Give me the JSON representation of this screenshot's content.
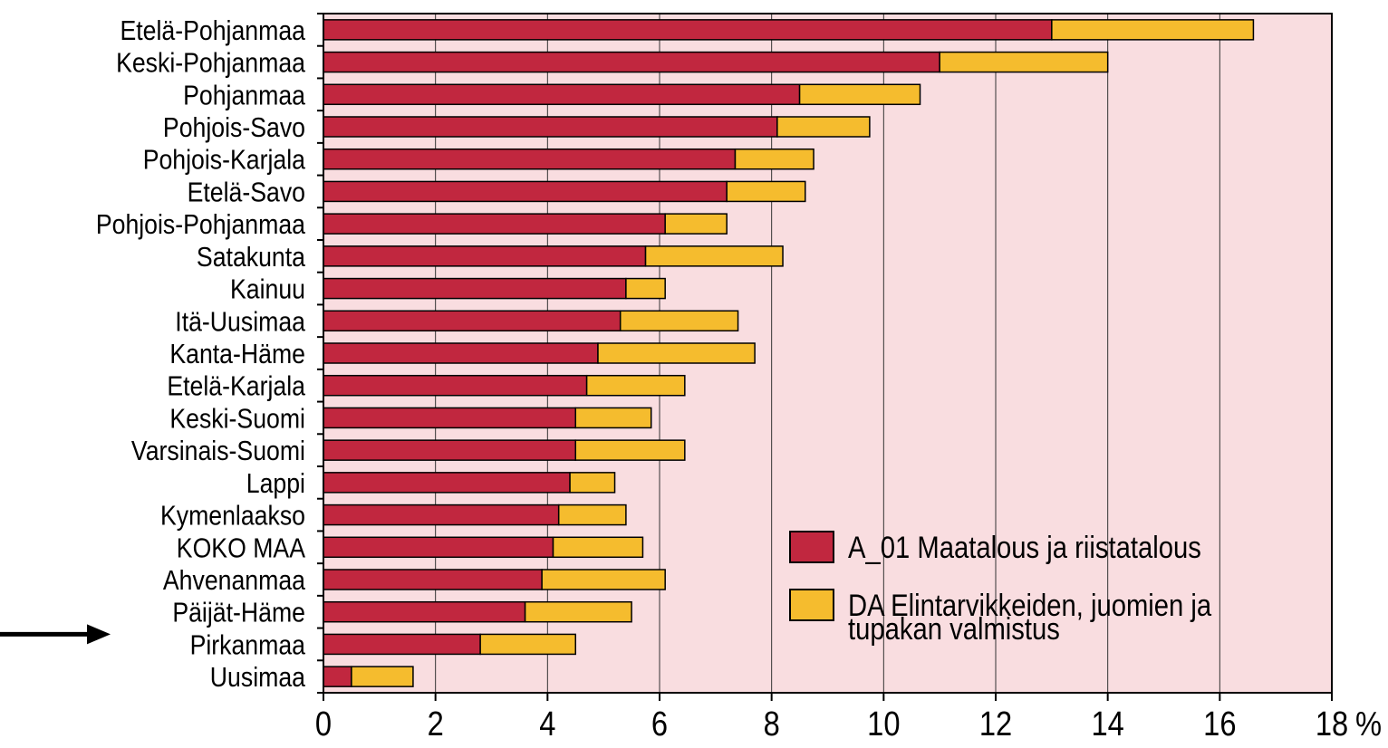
{
  "chart_data": {
    "type": "bar",
    "orientation": "horizontal",
    "stacked": true,
    "categories": [
      "Etelä-Pohjanmaa",
      "Keski-Pohjanmaa",
      "Pohjanmaa",
      "Pohjois-Savo",
      "Pohjois-Karjala",
      "Etelä-Savo",
      "Pohjois-Pohjanmaa",
      "Satakunta",
      "Kainuu",
      "Itä-Uusimaa",
      "Kanta-Häme",
      "Etelä-Karjala",
      "Keski-Suomi",
      "Varsinais-Suomi",
      "Lappi",
      "Kymenlaakso",
      "KOKO MAA",
      "Ahvenanmaa",
      "Päijät-Häme",
      "Pirkanmaa",
      "Uusimaa"
    ],
    "series": [
      {
        "name": "A_01 Maatalous ja riistatalous",
        "color": "#c1273f",
        "values": [
          13.0,
          11.0,
          8.5,
          8.1,
          7.35,
          7.2,
          6.1,
          5.75,
          5.4,
          5.3,
          4.9,
          4.7,
          4.5,
          4.5,
          4.4,
          4.2,
          4.1,
          3.9,
          3.6,
          2.8,
          0.5
        ]
      },
      {
        "name": "DA Elintarvikkeiden, juomien ja tupakan valmistus",
        "color": "#f5bc2e",
        "values": [
          3.6,
          3.0,
          2.15,
          1.65,
          1.4,
          1.4,
          1.1,
          2.45,
          0.7,
          2.1,
          2.8,
          1.75,
          1.35,
          1.95,
          0.8,
          1.2,
          1.6,
          2.2,
          1.9,
          1.7,
          1.1
        ]
      }
    ],
    "legend_lines": [
      [
        "A_01 Maatalous ja riistatalous"
      ],
      [
        "DA Elintarvikkeiden, juomien ja",
        "tupakan valmistus"
      ]
    ],
    "x_ticks": [
      0,
      2,
      4,
      6,
      8,
      10,
      12,
      14,
      16,
      18
    ],
    "x_unit": "%",
    "xlim": [
      0,
      18
    ],
    "highlighted_category": "Pirkanmaa",
    "grid": "vertical",
    "legend_position": "bottom-right",
    "plot_background": "#f9dde0"
  }
}
